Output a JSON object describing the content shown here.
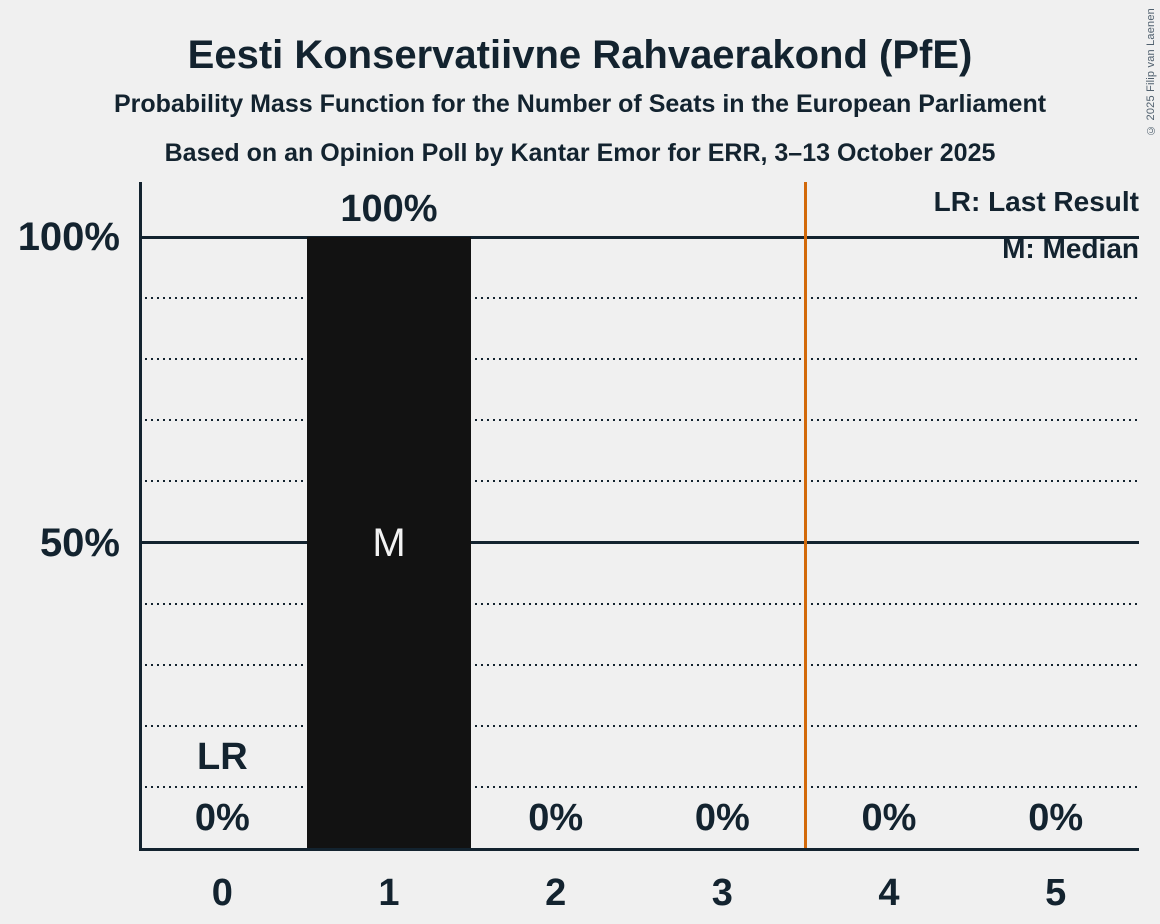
{
  "copyright": "© 2025 Filip van Laenen",
  "chart_data": {
    "type": "bar",
    "title": "Eesti Konservatiivne Rahvaerakond (PfE)",
    "subtitle1": "Probability Mass Function for the Number of Seats in the European Parliament",
    "subtitle2": "Based on an Opinion Poll by Kantar Emor for ERR, 3–13 October 2025",
    "xlabel": "",
    "ylabel": "",
    "categories": [
      "0",
      "1",
      "2",
      "3",
      "4",
      "5"
    ],
    "values": [
      0,
      100,
      0,
      0,
      0,
      0
    ],
    "bar_value_labels": [
      "0%",
      "100%",
      "0%",
      "0%",
      "0%",
      "0%"
    ],
    "median_seats": "1",
    "median_marker": "M",
    "last_result_seats": "0",
    "last_result_marker": "LR",
    "majority_line_x": 3.5,
    "y_axis": {
      "ticks": [
        {
          "value": 100,
          "label": "100%"
        },
        {
          "value": 50,
          "label": "50%"
        }
      ],
      "solid_gridlines": [
        50,
        100
      ],
      "dotted_gridlines": [
        10,
        20,
        30,
        40,
        60,
        70,
        80,
        90
      ],
      "ylim": [
        0,
        109
      ]
    },
    "legend": [
      {
        "label": "LR: Last Result"
      },
      {
        "label": "M: Median"
      }
    ],
    "colors": {
      "background": "#f0f0f0",
      "text": "#13232f",
      "bar": "#121212",
      "majority_line": "#d2690a",
      "median_label": "#f2f2f2"
    }
  }
}
